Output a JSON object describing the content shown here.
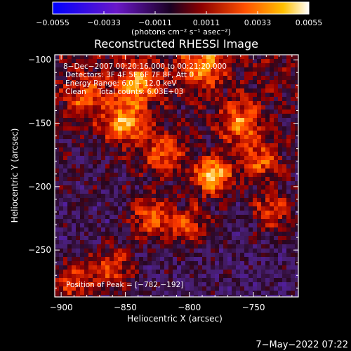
{
  "chart_data": {
    "type": "heatmap",
    "title": "Reconstructed RHESSI Image",
    "xlabel": "Heliocentric X (arcsec)",
    "ylabel": "Heliocentric Y (arcsec)",
    "xlim": [
      -905,
      -715
    ],
    "ylim": [
      -287,
      -96
    ],
    "x_ticks": [
      -900,
      -850,
      -800,
      -750
    ],
    "x_tick_labels": [
      "−900",
      "−850",
      "−800",
      "−750"
    ],
    "y_ticks": [
      -100,
      -150,
      -200,
      -250
    ],
    "y_tick_labels": [
      "−100",
      "−150",
      "−200",
      "−250"
    ],
    "colorbar": {
      "range": [
        -0.0055,
        0.0055
      ],
      "ticks": [
        -0.0055,
        -0.0033,
        -0.0011,
        0.0011,
        0.0033,
        0.0055
      ],
      "tick_labels": [
        "−0.0055",
        "−0.0033",
        "−0.0011",
        "0.0011",
        "0.0033",
        "0.0055"
      ],
      "label": "(photons cm⁻² s⁻¹ asec⁻²)",
      "colors": [
        "#0000ff",
        "#5a10c0",
        "#2a0033",
        "#9a0000",
        "#ff5000",
        "#ffc000",
        "#ffffff"
      ]
    },
    "annotations": [
      "8−Dec−2007 00:20:16.000 to 00:21:20.000",
      "Detectors: 3F 4F 5F 6F 7F 8F, Att 0",
      "Energy Range: 6.0 − 12.0 keV",
      "Clean     Total counts: 6.03E+03"
    ],
    "peak_label": "Position of Peak = [−782,−192]",
    "peak": [
      -782,
      -192
    ],
    "peak_value": 0.0055,
    "bright_sources": [
      {
        "x": -790,
        "y": -105,
        "value": 0.0033
      },
      {
        "x": -840,
        "y": -120,
        "value": 0.0035
      },
      {
        "x": -850,
        "y": -150,
        "value": 0.004
      },
      {
        "x": -880,
        "y": -130,
        "value": 0.0025
      },
      {
        "x": -820,
        "y": -175,
        "value": 0.003
      },
      {
        "x": -760,
        "y": -150,
        "value": 0.0034
      },
      {
        "x": -745,
        "y": -180,
        "value": 0.003
      },
      {
        "x": -735,
        "y": -220,
        "value": 0.0028
      },
      {
        "x": -800,
        "y": -230,
        "value": 0.003
      },
      {
        "x": -830,
        "y": -225,
        "value": 0.0034
      },
      {
        "x": -860,
        "y": -265,
        "value": 0.003
      },
      {
        "x": -890,
        "y": -275,
        "value": 0.003
      }
    ]
  },
  "footer": {
    "timestamp": "7−May−2022 07:22"
  }
}
